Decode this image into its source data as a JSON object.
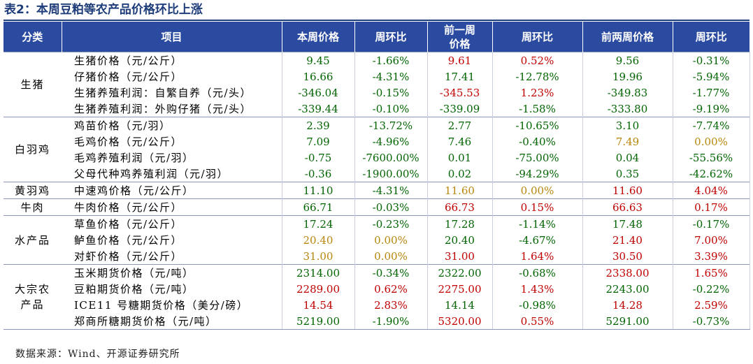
{
  "title": "表2：本周豆粕等农产品价格环比上涨",
  "colors": {
    "header_bg": "#2b4ba0",
    "up": "#c00000",
    "down": "#006400",
    "flat": "#b8860b"
  },
  "columns": [
    "分类",
    "项目",
    "本周价格",
    "周环比",
    "前一周价格",
    "周环比",
    "前两周价格",
    "周环比"
  ],
  "col_prev_week_line1": "前一周",
  "col_prev_week_line2": "价格",
  "groups": [
    {
      "category_lines": [
        "生猪"
      ],
      "rows": [
        {
          "item": "生猪价格（元/公斤）",
          "cells": [
            [
              "9.45",
              "down"
            ],
            [
              "-1.66%",
              "down"
            ],
            [
              "9.61",
              "up"
            ],
            [
              "0.52%",
              "up"
            ],
            [
              "9.56",
              "down"
            ],
            [
              "-0.31%",
              "down"
            ]
          ]
        },
        {
          "item": "仔猪价格（元/公斤）",
          "cells": [
            [
              "16.66",
              "down"
            ],
            [
              "-4.31%",
              "down"
            ],
            [
              "17.41",
              "down"
            ],
            [
              "-12.78%",
              "down"
            ],
            [
              "19.96",
              "down"
            ],
            [
              "-5.94%",
              "down"
            ]
          ]
        },
        {
          "item": "生猪养殖利润：自繁自养（元/头）",
          "cells": [
            [
              "-346.04",
              "down"
            ],
            [
              "-0.15%",
              "down"
            ],
            [
              "-345.53",
              "up"
            ],
            [
              "1.23%",
              "up"
            ],
            [
              "-349.83",
              "down"
            ],
            [
              "-1.77%",
              "down"
            ]
          ]
        },
        {
          "item": "生猪养殖利润：外购仔猪（元/头）",
          "cells": [
            [
              "-339.44",
              "down"
            ],
            [
              "-0.10%",
              "down"
            ],
            [
              "-339.09",
              "down"
            ],
            [
              "-1.58%",
              "down"
            ],
            [
              "-333.80",
              "down"
            ],
            [
              "-9.19%",
              "down"
            ]
          ]
        }
      ]
    },
    {
      "category_lines": [
        "白羽鸡"
      ],
      "rows": [
        {
          "item": "鸡苗价格（元/羽）",
          "cells": [
            [
              "2.39",
              "down"
            ],
            [
              "-13.72%",
              "down"
            ],
            [
              "2.77",
              "down"
            ],
            [
              "-10.65%",
              "down"
            ],
            [
              "3.10",
              "down"
            ],
            [
              "-7.74%",
              "down"
            ]
          ]
        },
        {
          "item": "毛鸡价格（元/公斤）",
          "cells": [
            [
              "7.09",
              "down"
            ],
            [
              "-4.96%",
              "down"
            ],
            [
              "7.46",
              "down"
            ],
            [
              "-0.40%",
              "down"
            ],
            [
              "7.49",
              "flat"
            ],
            [
              "0.00%",
              "flat"
            ]
          ]
        },
        {
          "item": "毛鸡养殖利润（元/羽）",
          "cells": [
            [
              "-0.75",
              "down"
            ],
            [
              "-7600.00%",
              "down"
            ],
            [
              "0.01",
              "down"
            ],
            [
              "-75.00%",
              "down"
            ],
            [
              "0.04",
              "down"
            ],
            [
              "-55.56%",
              "down"
            ]
          ]
        },
        {
          "item": "父母代种鸡养殖利润（元/羽）",
          "cells": [
            [
              "-0.36",
              "down"
            ],
            [
              "-1900.00%",
              "down"
            ],
            [
              "0.02",
              "down"
            ],
            [
              "-94.29%",
              "down"
            ],
            [
              "0.35",
              "down"
            ],
            [
              "-42.62%",
              "down"
            ]
          ]
        }
      ]
    },
    {
      "category_lines": [
        "黄羽鸡"
      ],
      "rows": [
        {
          "item": "中速鸡价格（元/公斤）",
          "cells": [
            [
              "11.10",
              "down"
            ],
            [
              "-4.31%",
              "down"
            ],
            [
              "11.60",
              "flat"
            ],
            [
              "0.00%",
              "flat"
            ],
            [
              "11.60",
              "up"
            ],
            [
              "4.04%",
              "up"
            ]
          ]
        }
      ]
    },
    {
      "category_lines": [
        "牛肉"
      ],
      "rows": [
        {
          "item": "牛肉价格（元/公斤）",
          "cells": [
            [
              "66.71",
              "down"
            ],
            [
              "-0.03%",
              "down"
            ],
            [
              "66.73",
              "up"
            ],
            [
              "0.15%",
              "up"
            ],
            [
              "66.63",
              "up"
            ],
            [
              "0.17%",
              "up"
            ]
          ]
        }
      ]
    },
    {
      "category_lines": [
        "水产品"
      ],
      "rows": [
        {
          "item": "草鱼价格（元/公斤）",
          "cells": [
            [
              "17.24",
              "down"
            ],
            [
              "-0.23%",
              "down"
            ],
            [
              "17.28",
              "down"
            ],
            [
              "-1.14%",
              "down"
            ],
            [
              "17.48",
              "down"
            ],
            [
              "-0.17%",
              "down"
            ]
          ]
        },
        {
          "item": "鲈鱼价格（元/公斤）",
          "cells": [
            [
              "20.40",
              "flat"
            ],
            [
              "0.00%",
              "flat"
            ],
            [
              "20.40",
              "down"
            ],
            [
              "-4.67%",
              "down"
            ],
            [
              "21.40",
              "up"
            ],
            [
              "7.00%",
              "up"
            ]
          ]
        },
        {
          "item": "对虾价格（元/公斤）",
          "cells": [
            [
              "31.00",
              "flat"
            ],
            [
              "0.00%",
              "flat"
            ],
            [
              "31.00",
              "up"
            ],
            [
              "1.64%",
              "up"
            ],
            [
              "30.50",
              "up"
            ],
            [
              "3.39%",
              "up"
            ]
          ]
        }
      ]
    },
    {
      "category_lines": [
        "大宗农",
        "产品"
      ],
      "rows": [
        {
          "item": "玉米期货价格（元/吨）",
          "cells": [
            [
              "2314.00",
              "down"
            ],
            [
              "-0.34%",
              "down"
            ],
            [
              "2322.00",
              "down"
            ],
            [
              "-0.68%",
              "down"
            ],
            [
              "2338.00",
              "up"
            ],
            [
              "1.65%",
              "up"
            ]
          ]
        },
        {
          "item": "豆粕期货价格（元/吨）",
          "cells": [
            [
              "2289.00",
              "up"
            ],
            [
              "0.62%",
              "up"
            ],
            [
              "2275.00",
              "up"
            ],
            [
              "1.43%",
              "up"
            ],
            [
              "2243.00",
              "down"
            ],
            [
              "-0.22%",
              "down"
            ]
          ]
        },
        {
          "item": "ICE11 号糖期货价格（美分/磅）",
          "cells": [
            [
              "14.54",
              "up"
            ],
            [
              "2.83%",
              "up"
            ],
            [
              "14.14",
              "down"
            ],
            [
              "-0.98%",
              "down"
            ],
            [
              "14.28",
              "up"
            ],
            [
              "2.59%",
              "up"
            ]
          ]
        },
        {
          "item": "郑商所糖期货价格（元/吨）",
          "cells": [
            [
              "5219.00",
              "down"
            ],
            [
              "-1.90%",
              "down"
            ],
            [
              "5320.00",
              "up"
            ],
            [
              "0.55%",
              "up"
            ],
            [
              "5291.00",
              "down"
            ],
            [
              "-0.73%",
              "down"
            ]
          ]
        }
      ]
    }
  ],
  "footer": "数据来源：Wind、开源证券研究所"
}
